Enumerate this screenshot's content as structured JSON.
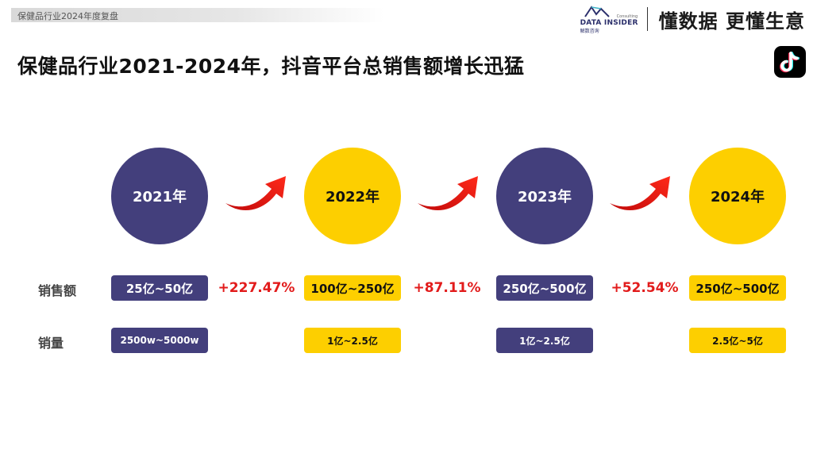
{
  "header": {
    "section_label": "保健品行业2024年度复盘",
    "brand_name": "DATA INSIDER",
    "brand_sub": "Consulting",
    "brand_cn": "解数咨询",
    "slogan": "懂数据 更懂生意"
  },
  "title": "保健品行业2021-2024年，抖音平台总销售额增长迅猛",
  "platform_icon": "tiktok-icon",
  "colors": {
    "navy": "#433f7c",
    "yellow": "#fdcf00",
    "growth_red": "#e21b1b"
  },
  "row_labels": {
    "sales_amount": "销售额",
    "sales_volume": "销量"
  },
  "years": [
    {
      "label": "2021年",
      "sales_amount": "25亿~50亿",
      "sales_volume": "2500w~5000w",
      "color": "navy"
    },
    {
      "label": "2022年",
      "sales_amount": "100亿~250亿",
      "sales_volume": "1亿~2.5亿",
      "color": "yellow"
    },
    {
      "label": "2023年",
      "sales_amount": "250亿~500亿",
      "sales_volume": "1亿~2.5亿",
      "color": "navy"
    },
    {
      "label": "2024年",
      "sales_amount": "250亿~500亿",
      "sales_volume": "2.5亿~5亿",
      "color": "yellow"
    }
  ],
  "growth": [
    "+227.47%",
    "+87.11%",
    "+52.54%"
  ]
}
